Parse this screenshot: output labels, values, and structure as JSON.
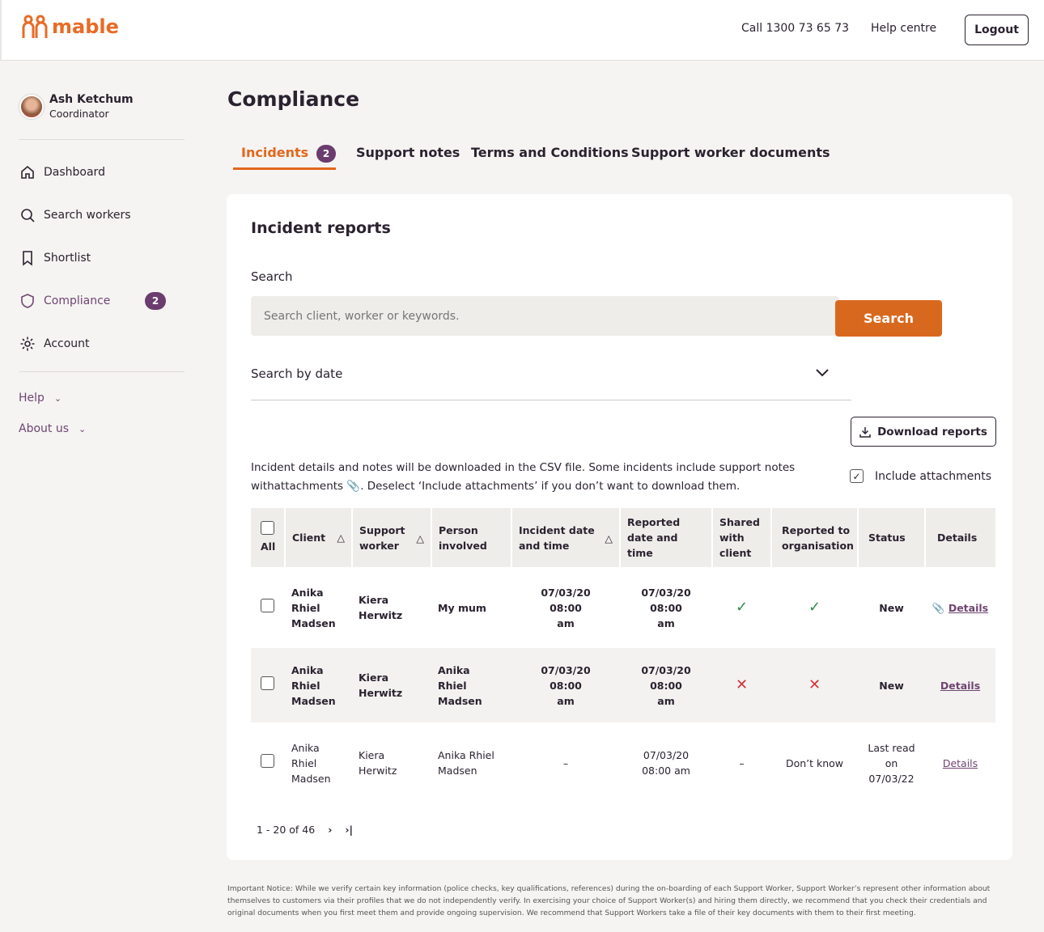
{
  "header": {
    "logo": "mable",
    "call": "Call 1300 73 65 73",
    "help": "Help centre",
    "logout": "Logout"
  },
  "user": {
    "name": "Ash Ketchum",
    "role": "Coordinator"
  },
  "sidebar": {
    "items": [
      {
        "label": "Dashboard",
        "icon": "home-icon"
      },
      {
        "label": "Search workers",
        "icon": "search-icon"
      },
      {
        "label": "Shortlist",
        "icon": "bookmark-icon"
      },
      {
        "label": "Compliance",
        "icon": "shield-icon",
        "badge": "2",
        "active": true
      },
      {
        "label": "Account",
        "icon": "gear-icon"
      }
    ],
    "help": "Help",
    "about": "About us"
  },
  "page": {
    "title": "Compliance",
    "tabs": [
      {
        "label": "Incidents",
        "badge": "2"
      },
      {
        "label": "Support notes"
      },
      {
        "label": "Terms and Conditions"
      },
      {
        "label": "Support worker documents"
      }
    ]
  },
  "card": {
    "title": "Incident reports",
    "search_label": "Search",
    "search_placeholder": "Search client, worker or keywords.",
    "search_button": "Search",
    "date_label": "Search by date",
    "download": "Download reports",
    "info_1": "Incident details and notes will be downloaded in the CSV file. Some incidents include support notes",
    "info_2": "withattachments",
    "info_3": ". Deselect ‘Include attachments’ if you don’t want to download them.",
    "include_attachments": "Include attachments",
    "include_checked": true
  },
  "table": {
    "all": "All",
    "headers": [
      "Client",
      "Support worker",
      "Person involved",
      "Incident date and time",
      "Reported date and time",
      "Shared with client",
      "Reported to organisation",
      "Status",
      "Details"
    ],
    "rows": [
      {
        "client": "Anika Rhiel Madsen",
        "worker": "Kiera Herwitz",
        "person": "My mum",
        "incident": "07/03/20 08:00 am",
        "reported": "07/03/20 08:00 am",
        "shared": "yes",
        "reported_org": "yes",
        "status": "New",
        "details": "Details",
        "attachment": true,
        "bold": true
      },
      {
        "client": "Anika Rhiel Madsen",
        "worker": "Kiera Herwitz",
        "person": "Anika Rhiel Madsen",
        "incident": "07/03/20 08:00 am",
        "reported": "07/03/20 08:00 am",
        "shared": "no",
        "reported_org": "no",
        "status": "New",
        "details": "Details",
        "attachment": false,
        "bold": true
      },
      {
        "client": "Anika Rhiel Madsen",
        "worker": "Kiera Herwitz",
        "person": "Anika Rhiel Madsen",
        "incident": "–",
        "reported": "07/03/20 08:00 am",
        "shared": "–",
        "reported_org": "Don’t know",
        "status": "Last read on 07/03/22",
        "details": "Details",
        "attachment": false,
        "bold": false
      }
    ]
  },
  "pagination": {
    "range": "1 - 20 of 46"
  },
  "notice": "Important Notice: While we verify certain key information (police checks, key qualifications, references) during the on-boarding of each Support Worker, Support Worker’s represent other information about themselves to customers via their profiles that we do not independently verify. In exercising your choice of Support Worker(s) and hiring them directly, we recommend that you check their credentials and original documents when you first meet them and provide ongoing supervision. We recommend that Support Workers take a file of their key documents with them to their first meeting.",
  "colors": {
    "brand": "#e2671e",
    "accent": "#6b3c6e",
    "success": "#2f8a4f",
    "error": "#d0343a"
  }
}
